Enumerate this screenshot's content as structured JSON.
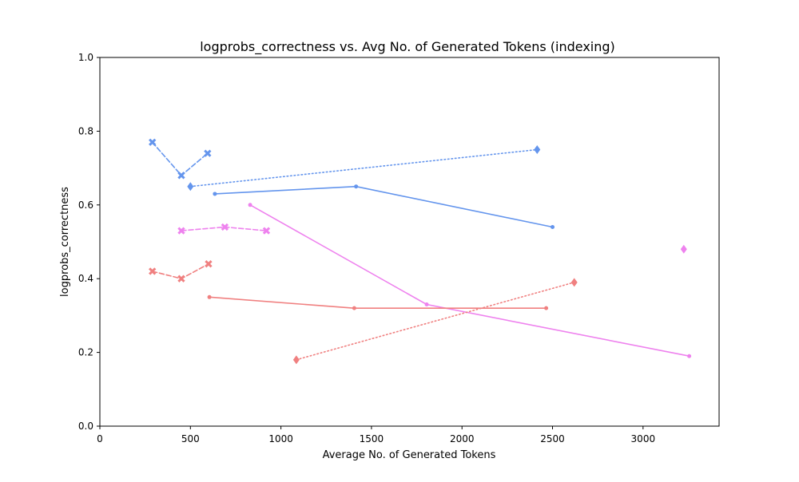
{
  "chart_data": {
    "type": "line",
    "title": "logprobs_correctness vs. Avg No. of Generated Tokens (indexing)",
    "xlabel": "Average No. of Generated Tokens",
    "ylabel": "logprobs_correctness",
    "xlim": [
      0,
      3420
    ],
    "ylim": [
      0.0,
      1.0
    ],
    "xticks": [
      0,
      500,
      1000,
      1500,
      2000,
      2500,
      3000
    ],
    "yticks": [
      0.0,
      0.2,
      0.4,
      0.6,
      0.8,
      1.0
    ],
    "xtick_labels": [
      "0",
      "500",
      "1000",
      "1500",
      "2000",
      "2500",
      "3000"
    ],
    "ytick_labels": [
      "0.0",
      "0.2",
      "0.4",
      "0.6",
      "0.8",
      "1.0"
    ],
    "grid": false,
    "legend": null,
    "series": [
      {
        "color": "#6495ED",
        "line_style": "dashed",
        "marker": "x",
        "x": [
          290,
          450,
          595
        ],
        "y": [
          0.77,
          0.68,
          0.74
        ]
      },
      {
        "color": "#6495ED",
        "line_style": "dotted",
        "marker": "diamond",
        "x": [
          500,
          2415
        ],
        "y": [
          0.65,
          0.75
        ]
      },
      {
        "color": "#6495ED",
        "line_style": "solid",
        "marker": "dot",
        "x": [
          635,
          1415,
          2500
        ],
        "y": [
          0.63,
          0.65,
          0.54
        ]
      },
      {
        "color": "#EE82EE",
        "line_style": "dashed",
        "marker": "x",
        "x": [
          450,
          690,
          920
        ],
        "y": [
          0.53,
          0.54,
          0.53
        ]
      },
      {
        "color": "#EE82EE",
        "line_style": "solid",
        "marker": "dot",
        "x": [
          830,
          1805,
          3255
        ],
        "y": [
          0.6,
          0.33,
          0.19
        ]
      },
      {
        "color": "#EE82EE",
        "line_style": "none",
        "marker": "diamond",
        "x": [
          3225
        ],
        "y": [
          0.48
        ]
      },
      {
        "color": "#F08080",
        "line_style": "dashed",
        "marker": "x",
        "x": [
          290,
          450,
          600
        ],
        "y": [
          0.42,
          0.4,
          0.44
        ]
      },
      {
        "color": "#F08080",
        "line_style": "solid",
        "marker": "dot",
        "x": [
          605,
          1405,
          2465
        ],
        "y": [
          0.35,
          0.32,
          0.32
        ]
      },
      {
        "color": "#F08080",
        "line_style": "dotted",
        "marker": "diamond",
        "x": [
          1085,
          2620
        ],
        "y": [
          0.18,
          0.39
        ]
      }
    ]
  }
}
